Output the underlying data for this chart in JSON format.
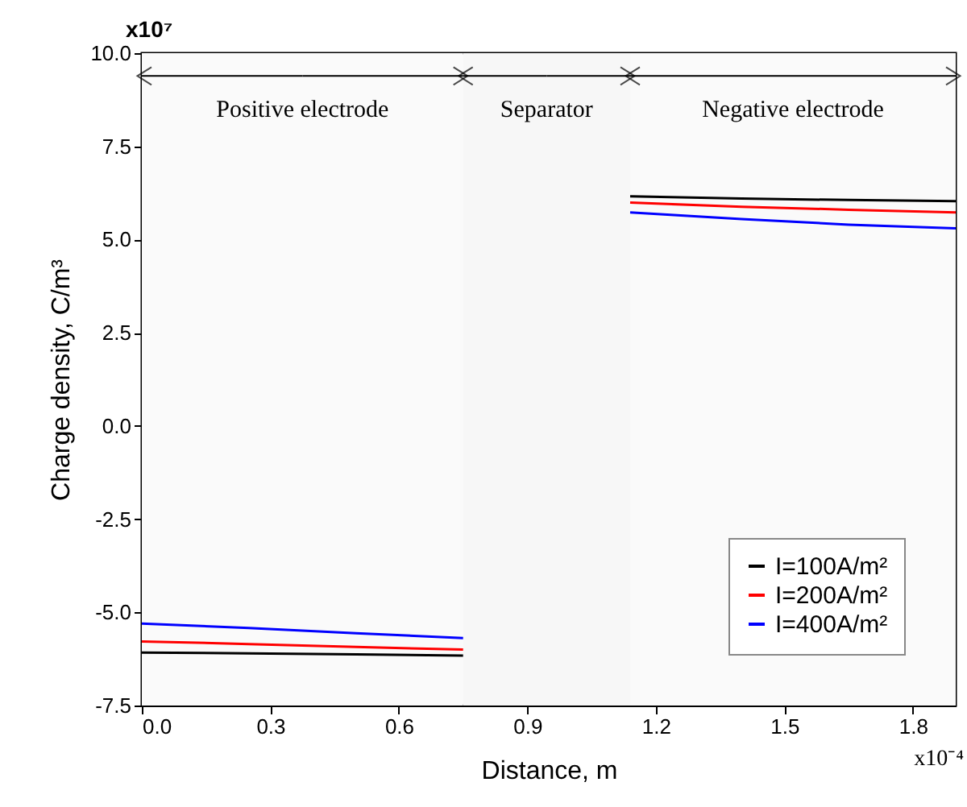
{
  "chart_data": {
    "type": "line",
    "xlabel": "Distance, m",
    "ylabel": "Charge density, C/m³",
    "xlim": [
      0,
      1.9
    ],
    "xticks": [
      {
        "value": 0,
        "label": "0.0"
      },
      0.3,
      0.6,
      0.9,
      1.2,
      1.5,
      1.8
    ],
    "ylim": [
      -7.5,
      10
    ],
    "yticks": [
      {
        "value": -7.5,
        "label": "-7.5"
      },
      {
        "value": -5,
        "label": "-5.0"
      },
      {
        "value": -2.5,
        "label": "-2.5"
      },
      {
        "value": 0,
        "label": "0.0"
      },
      {
        "value": 2.5,
        "label": "2.5"
      },
      {
        "value": 5,
        "label": "5.0"
      },
      {
        "value": 7.5,
        "label": "7.5"
      },
      {
        "value": 10,
        "label": "10.0"
      }
    ],
    "x": [
      0,
      0.25,
      0.5,
      0.75,
      0.95,
      1.14,
      1.4,
      1.65,
      1.9
    ],
    "series": [
      {
        "name": "I=100A/m²",
        "color": "#000000",
        "values": [
          -6.08,
          -6.1,
          -6.13,
          -6.16,
          null,
          6.16,
          6.1,
          6.06,
          6.03
        ]
      },
      {
        "name": "I=200A/m²",
        "color": "#ff0000",
        "values": [
          -5.78,
          -5.85,
          -5.93,
          -6.0,
          null,
          5.99,
          5.88,
          5.8,
          5.73
        ]
      },
      {
        "name": "I=400A/m²",
        "color": "#0000ff",
        "values": [
          -5.3,
          -5.42,
          -5.56,
          -5.69,
          null,
          5.73,
          5.55,
          5.4,
          5.3
        ]
      }
    ],
    "bands": [
      {
        "axis": "x",
        "from": 0,
        "to": 0.75,
        "label": "Positive electrode",
        "color": "#fafafa"
      },
      {
        "axis": "x",
        "from": 0.75,
        "to": 1.14,
        "label": "Separator",
        "color": "#f7f7f7"
      },
      {
        "axis": "x",
        "from": 1.14,
        "to": 1.9,
        "label": "Negative electrode",
        "color": "#fafafa"
      }
    ],
    "annotations": [
      "x10⁷",
      "x10⁻⁴"
    ],
    "legend": "bottom right",
    "grid": false,
    "marker": "none",
    "line_style": "solid"
  }
}
